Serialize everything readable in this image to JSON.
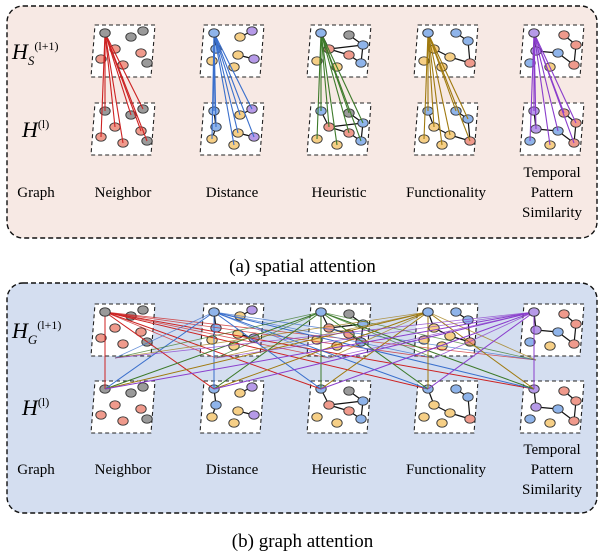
{
  "panels": [
    {
      "id": "spatial",
      "caption": "(a) spatial attention",
      "background": "#f7e9e4",
      "top_label_main": "H",
      "top_label_sub": "S",
      "top_label_sup": "(l+1)",
      "bottom_label_main": "H",
      "bottom_label_sup": "(l)",
      "row_label": "Graph",
      "mode": "within"
    },
    {
      "id": "graph",
      "caption": "(b) graph attention",
      "background": "#d4def0",
      "top_label_main": "H",
      "top_label_sub": "G",
      "top_label_sup": "(l+1)",
      "bottom_label_main": "H",
      "bottom_label_sup": "(l)",
      "row_label": "Graph",
      "mode": "cross"
    }
  ],
  "graphs": [
    {
      "name": "Neighbor",
      "label_lines": [
        "Neighbor"
      ],
      "edge_color": "#cc2222"
    },
    {
      "name": "Distance",
      "label_lines": [
        "Distance"
      ],
      "edge_color": "#3a6fcc"
    },
    {
      "name": "Heuristic",
      "label_lines": [
        "Heuristic"
      ],
      "edge_color": "#3d7a2a"
    },
    {
      "name": "Functionality",
      "label_lines": [
        "Functionality"
      ],
      "edge_color": "#a07a10"
    },
    {
      "name": "Temporal Pattern Similarity",
      "label_lines": [
        "Temporal",
        "Pattern",
        "Similarity"
      ],
      "edge_color": "#8a3dcc"
    }
  ],
  "node_colors": {
    "gray": "#9a9a9a",
    "red": "#ef9a8c",
    "yellow": "#f6cf86",
    "blue": "#8fb4ea",
    "purple": "#b69ae8"
  }
}
